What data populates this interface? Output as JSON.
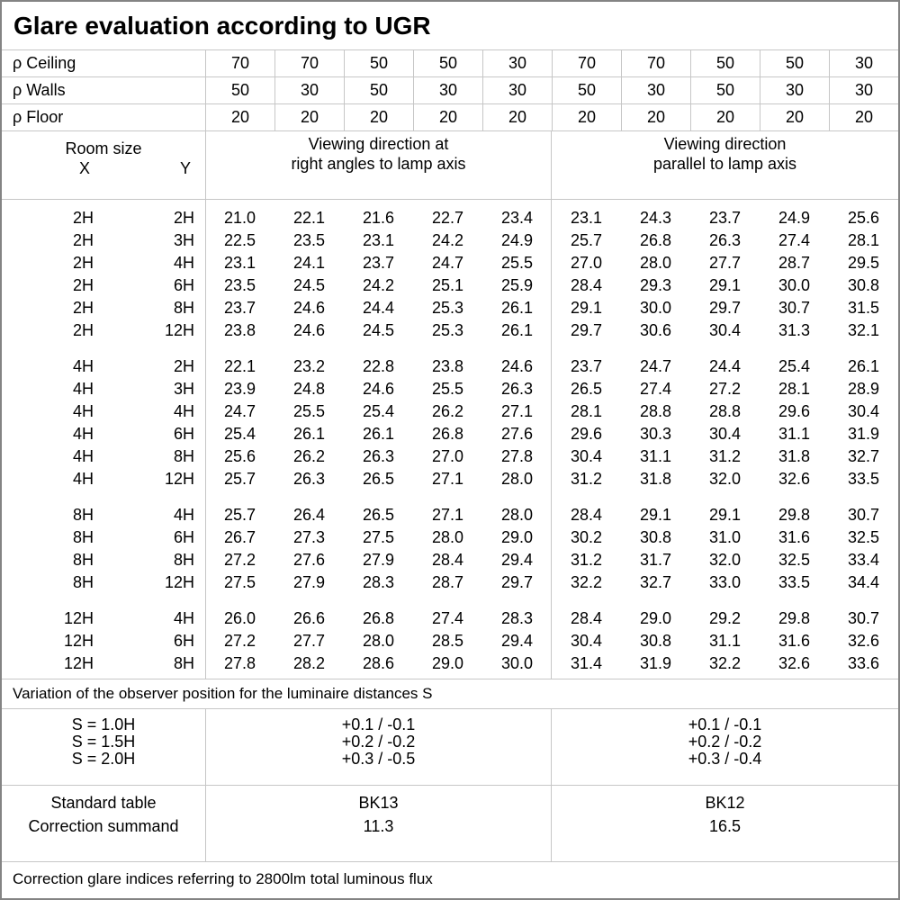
{
  "title": "Glare evaluation according to UGR",
  "reflectance_rows": [
    {
      "label": "ρ Ceiling",
      "values": [
        "70",
        "70",
        "50",
        "50",
        "30",
        "70",
        "70",
        "50",
        "50",
        "30"
      ]
    },
    {
      "label": "ρ Walls",
      "values": [
        "50",
        "30",
        "50",
        "30",
        "30",
        "50",
        "30",
        "50",
        "30",
        "30"
      ]
    },
    {
      "label": "ρ Floor",
      "values": [
        "20",
        "20",
        "20",
        "20",
        "20",
        "20",
        "20",
        "20",
        "20",
        "20"
      ]
    }
  ],
  "header": {
    "room_size_label": "Room size",
    "x_label": "X",
    "y_label": "Y",
    "group1_line1": "Viewing direction at",
    "group1_line2": "right angles to lamp axis",
    "group2_line1": "Viewing direction",
    "group2_line2": "parallel to lamp axis"
  },
  "blocks": [
    {
      "rows": [
        {
          "x": "2H",
          "y": "2H",
          "values": [
            "21.0",
            "22.1",
            "21.6",
            "22.7",
            "23.4",
            "23.1",
            "24.3",
            "23.7",
            "24.9",
            "25.6"
          ]
        },
        {
          "x": "2H",
          "y": "3H",
          "values": [
            "22.5",
            "23.5",
            "23.1",
            "24.2",
            "24.9",
            "25.7",
            "26.8",
            "26.3",
            "27.4",
            "28.1"
          ]
        },
        {
          "x": "2H",
          "y": "4H",
          "values": [
            "23.1",
            "24.1",
            "23.7",
            "24.7",
            "25.5",
            "27.0",
            "28.0",
            "27.7",
            "28.7",
            "29.5"
          ]
        },
        {
          "x": "2H",
          "y": "6H",
          "values": [
            "23.5",
            "24.5",
            "24.2",
            "25.1",
            "25.9",
            "28.4",
            "29.3",
            "29.1",
            "30.0",
            "30.8"
          ]
        },
        {
          "x": "2H",
          "y": "8H",
          "values": [
            "23.7",
            "24.6",
            "24.4",
            "25.3",
            "26.1",
            "29.1",
            "30.0",
            "29.7",
            "30.7",
            "31.5"
          ]
        },
        {
          "x": "2H",
          "y": "12H",
          "values": [
            "23.8",
            "24.6",
            "24.5",
            "25.3",
            "26.1",
            "29.7",
            "30.6",
            "30.4",
            "31.3",
            "32.1"
          ]
        }
      ]
    },
    {
      "rows": [
        {
          "x": "4H",
          "y": "2H",
          "values": [
            "22.1",
            "23.2",
            "22.8",
            "23.8",
            "24.6",
            "23.7",
            "24.7",
            "24.4",
            "25.4",
            "26.1"
          ]
        },
        {
          "x": "4H",
          "y": "3H",
          "values": [
            "23.9",
            "24.8",
            "24.6",
            "25.5",
            "26.3",
            "26.5",
            "27.4",
            "27.2",
            "28.1",
            "28.9"
          ]
        },
        {
          "x": "4H",
          "y": "4H",
          "values": [
            "24.7",
            "25.5",
            "25.4",
            "26.2",
            "27.1",
            "28.1",
            "28.8",
            "28.8",
            "29.6",
            "30.4"
          ]
        },
        {
          "x": "4H",
          "y": "6H",
          "values": [
            "25.4",
            "26.1",
            "26.1",
            "26.8",
            "27.6",
            "29.6",
            "30.3",
            "30.4",
            "31.1",
            "31.9"
          ]
        },
        {
          "x": "4H",
          "y": "8H",
          "values": [
            "25.6",
            "26.2",
            "26.3",
            "27.0",
            "27.8",
            "30.4",
            "31.1",
            "31.2",
            "31.8",
            "32.7"
          ]
        },
        {
          "x": "4H",
          "y": "12H",
          "values": [
            "25.7",
            "26.3",
            "26.5",
            "27.1",
            "28.0",
            "31.2",
            "31.8",
            "32.0",
            "32.6",
            "33.5"
          ]
        }
      ]
    },
    {
      "rows": [
        {
          "x": "8H",
          "y": "4H",
          "values": [
            "25.7",
            "26.4",
            "26.5",
            "27.1",
            "28.0",
            "28.4",
            "29.1",
            "29.1",
            "29.8",
            "30.7"
          ]
        },
        {
          "x": "8H",
          "y": "6H",
          "values": [
            "26.7",
            "27.3",
            "27.5",
            "28.0",
            "29.0",
            "30.2",
            "30.8",
            "31.0",
            "31.6",
            "32.5"
          ]
        },
        {
          "x": "8H",
          "y": "8H",
          "values": [
            "27.2",
            "27.6",
            "27.9",
            "28.4",
            "29.4",
            "31.2",
            "31.7",
            "32.0",
            "32.5",
            "33.4"
          ]
        },
        {
          "x": "8H",
          "y": "12H",
          "values": [
            "27.5",
            "27.9",
            "28.3",
            "28.7",
            "29.7",
            "32.2",
            "32.7",
            "33.0",
            "33.5",
            "34.4"
          ]
        }
      ]
    },
    {
      "rows": [
        {
          "x": "12H",
          "y": "4H",
          "values": [
            "26.0",
            "26.6",
            "26.8",
            "27.4",
            "28.3",
            "28.4",
            "29.0",
            "29.2",
            "29.8",
            "30.7"
          ]
        },
        {
          "x": "12H",
          "y": "6H",
          "values": [
            "27.2",
            "27.7",
            "28.0",
            "28.5",
            "29.4",
            "30.4",
            "30.8",
            "31.1",
            "31.6",
            "32.6"
          ]
        },
        {
          "x": "12H",
          "y": "8H",
          "values": [
            "27.8",
            "28.2",
            "28.6",
            "29.0",
            "30.0",
            "31.4",
            "31.9",
            "32.2",
            "32.6",
            "33.6"
          ]
        }
      ]
    }
  ],
  "variation_note": "Variation of the observer position for the luminaire distances S",
  "s_section": {
    "labels": [
      "S = 1.0H",
      "S = 1.5H",
      "S = 2.0H"
    ],
    "group1": [
      "+0.1 / -0.1",
      "+0.2 / -0.2",
      "+0.3 / -0.5"
    ],
    "group2": [
      "+0.1 / -0.1",
      "+0.2 / -0.2",
      "+0.3 / -0.4"
    ]
  },
  "standard_section": {
    "labels": [
      "Standard table",
      "Correction summand"
    ],
    "group1": [
      "BK13",
      "11.3"
    ],
    "group2": [
      "BK12",
      "16.5"
    ]
  },
  "footer_note": "Correction glare indices referring to 2800lm total luminous flux",
  "colors": {
    "grid_line": "#c6c6c6",
    "outer_border": "#848484",
    "text": "#000000",
    "background": "#ffffff"
  }
}
